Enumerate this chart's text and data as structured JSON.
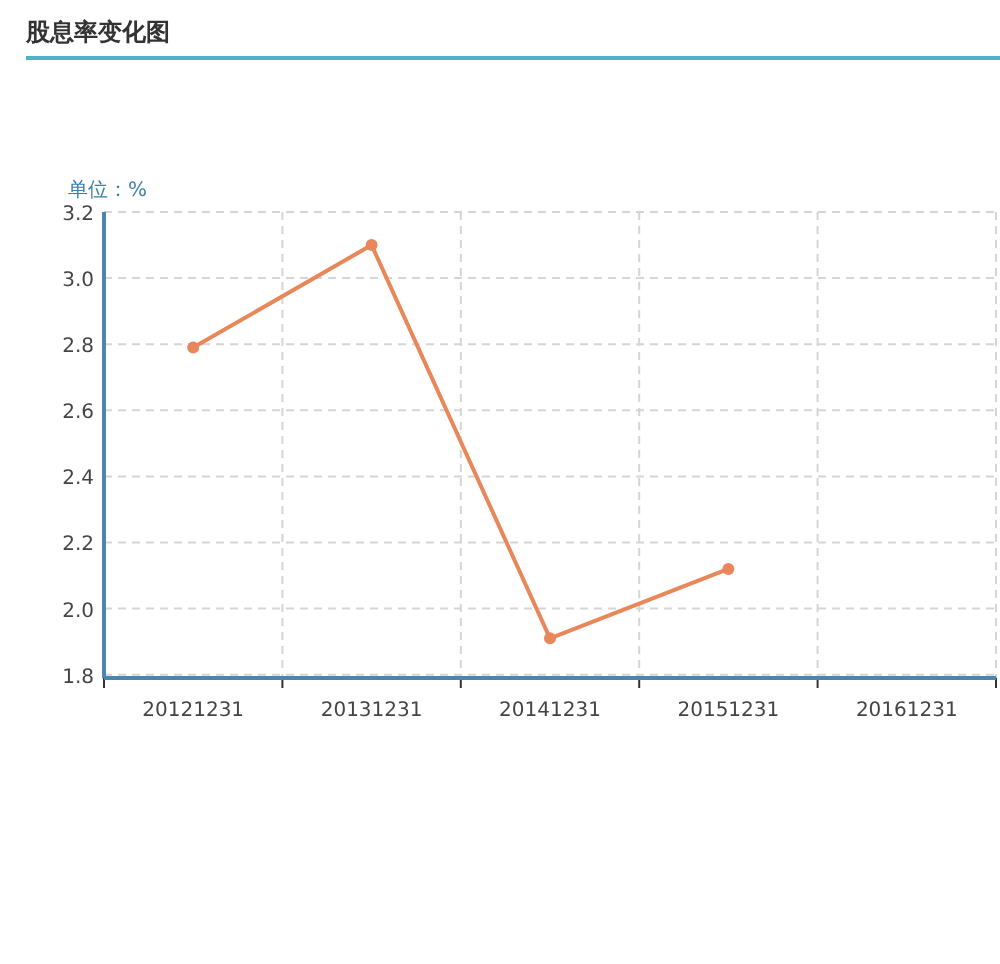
{
  "chart_data": {
    "type": "line",
    "title": "股息率变化图",
    "ylabel": "单位：%",
    "categories": [
      "20121231",
      "20131231",
      "20141231",
      "20151231",
      "20161231"
    ],
    "series": [
      {
        "color": "#e8875a",
        "values": [
          2.79,
          3.1,
          1.91,
          2.12,
          null
        ]
      }
    ],
    "ylim": [
      1.79,
      3.2
    ],
    "yticks": [
      {
        "value": 1.8,
        "label": "1.8"
      },
      {
        "value": 2.0,
        "label": "2.0"
      },
      {
        "value": 2.2,
        "label": "2.2"
      },
      {
        "value": 2.4,
        "label": "2.4"
      },
      {
        "value": 2.6,
        "label": "2.6"
      },
      {
        "value": 2.8,
        "label": "2.8"
      },
      {
        "value": 3.0,
        "label": "3.0"
      },
      {
        "value": 3.2,
        "label": "3.2"
      }
    ],
    "grid": true,
    "marker": "circle",
    "line_style": "solid"
  }
}
